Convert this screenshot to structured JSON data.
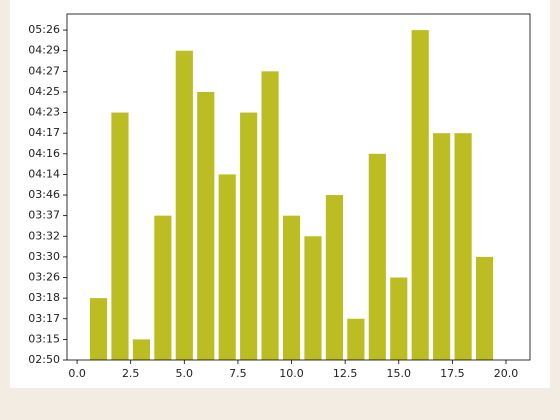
{
  "chart_data": {
    "type": "bar",
    "color": "#bcbd22",
    "x": [
      1,
      2,
      3,
      4,
      5,
      6,
      7,
      8,
      9,
      10,
      11,
      12,
      13,
      14,
      15,
      16,
      17,
      18,
      19
    ],
    "values": [
      3,
      12,
      1,
      7,
      15,
      13,
      9,
      12,
      14,
      7,
      6,
      8,
      2,
      10,
      4,
      16,
      11,
      11,
      5
    ],
    "bar_width": 0.8,
    "xlim": [
      -0.47,
      21.12
    ],
    "xticks": [
      {
        "value": 0,
        "label": "0.0"
      },
      {
        "value": 2.5,
        "label": "2.5"
      },
      {
        "value": 5,
        "label": "5.0"
      },
      {
        "value": 7.5,
        "label": "7.5"
      },
      {
        "value": 10,
        "label": "10.0"
      },
      {
        "value": 12.5,
        "label": "12.5"
      },
      {
        "value": 15,
        "label": "15.0"
      },
      {
        "value": 17.5,
        "label": "17.5"
      },
      {
        "value": 20,
        "label": "20.0"
      }
    ],
    "ylim": [
      0,
      16.78
    ],
    "yticks": [
      {
        "value": 0,
        "label": "02:50"
      },
      {
        "value": 1,
        "label": "03:15"
      },
      {
        "value": 2,
        "label": "03:17"
      },
      {
        "value": 3,
        "label": "03:18"
      },
      {
        "value": 4,
        "label": "03:26"
      },
      {
        "value": 5,
        "label": "03:30"
      },
      {
        "value": 6,
        "label": "03:32"
      },
      {
        "value": 7,
        "label": "03:37"
      },
      {
        "value": 8,
        "label": "03:46"
      },
      {
        "value": 9,
        "label": "04:14"
      },
      {
        "value": 10,
        "label": "04:16"
      },
      {
        "value": 11,
        "label": "04:17"
      },
      {
        "value": 12,
        "label": "04:23"
      },
      {
        "value": 13,
        "label": "04:25"
      },
      {
        "value": 14,
        "label": "04:27"
      },
      {
        "value": 15,
        "label": "04:29"
      },
      {
        "value": 16,
        "label": "05:26"
      }
    ]
  }
}
